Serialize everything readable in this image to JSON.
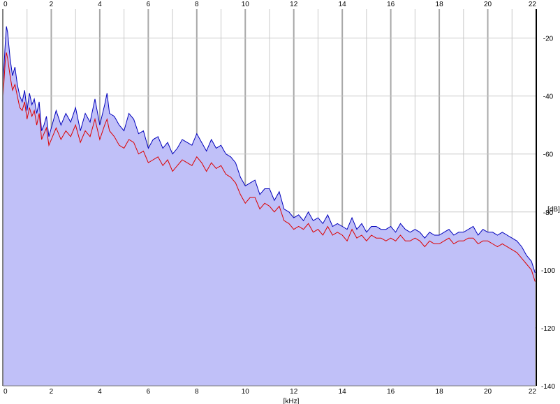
{
  "chart_data": {
    "type": "area",
    "xlabel": "[kHz]",
    "ylabel": "[dB]",
    "xlim": [
      0,
      22
    ],
    "ylim": [
      -140,
      -10
    ],
    "x_ticks": [
      "0",
      "2",
      "4",
      "6",
      "8",
      "10",
      "12",
      "14",
      "16",
      "18",
      "20",
      "22"
    ],
    "y_ticks": [
      "-20",
      "-40",
      "-60",
      "-80",
      "-100",
      "-120",
      "-140"
    ],
    "grid": true,
    "series": [
      {
        "color": "#0000bb",
        "x": [
          0,
          0.05,
          0.1,
          0.15,
          0.2,
          0.3,
          0.4,
          0.5,
          0.6,
          0.7,
          0.8,
          0.9,
          1.0,
          1.1,
          1.2,
          1.3,
          1.4,
          1.5,
          1.6,
          1.7,
          1.8,
          1.9,
          2.0,
          2.2,
          2.4,
          2.6,
          2.8,
          3.0,
          3.2,
          3.4,
          3.6,
          3.8,
          4.0,
          4.2,
          4.3,
          4.4,
          4.6,
          4.8,
          5.0,
          5.2,
          5.4,
          5.6,
          5.8,
          6.0,
          6.2,
          6.4,
          6.6,
          6.8,
          7.0,
          7.2,
          7.4,
          7.6,
          7.8,
          8.0,
          8.2,
          8.4,
          8.6,
          8.8,
          9.0,
          9.2,
          9.4,
          9.6,
          9.8,
          10.0,
          10.2,
          10.4,
          10.6,
          10.8,
          11.0,
          11.2,
          11.4,
          11.6,
          11.8,
          12.0,
          12.2,
          12.4,
          12.6,
          12.8,
          13.0,
          13.2,
          13.4,
          13.6,
          13.8,
          14.0,
          14.2,
          14.4,
          14.6,
          14.8,
          15.0,
          15.2,
          15.4,
          15.6,
          15.8,
          16.0,
          16.2,
          16.4,
          16.6,
          16.8,
          17.0,
          17.2,
          17.4,
          17.6,
          17.8,
          18.0,
          18.2,
          18.4,
          18.6,
          18.8,
          19.0,
          19.2,
          19.4,
          19.6,
          19.8,
          20.0,
          20.2,
          20.4,
          20.6,
          20.8,
          21.0,
          21.2,
          21.4,
          21.6,
          21.8,
          21.95
        ],
        "y": [
          -37,
          -30,
          -22,
          -16,
          -18,
          -27,
          -33,
          -30,
          -36,
          -40,
          -42,
          -38,
          -45,
          -39,
          -43,
          -41,
          -46,
          -42,
          -52,
          -50,
          -47,
          -54,
          -51,
          -45,
          -50,
          -46,
          -49,
          -44,
          -52,
          -46,
          -49,
          -41,
          -50,
          -43,
          -39,
          -46,
          -47,
          -50,
          -52,
          -46,
          -48,
          -53,
          -52,
          -58,
          -55,
          -54,
          -58,
          -56,
          -60,
          -58,
          -55,
          -56,
          -57,
          -53,
          -56,
          -59,
          -55,
          -58,
          -57,
          -60,
          -61,
          -63,
          -68,
          -71,
          -70,
          -69,
          -74,
          -72,
          -72,
          -76,
          -73,
          -79,
          -80,
          -82,
          -81,
          -83,
          -80,
          -83,
          -82,
          -84,
          -81,
          -85,
          -84,
          -85,
          -86,
          -82,
          -86,
          -84,
          -87,
          -85,
          -85,
          -86,
          -86,
          -85,
          -87,
          -84,
          -86,
          -87,
          -86,
          -87,
          -89,
          -87,
          -88,
          -88,
          -87,
          -86,
          -88,
          -87,
          -87,
          -86,
          -85,
          -88,
          -86,
          -87,
          -87,
          -88,
          -87,
          -88,
          -89,
          -90,
          -92,
          -95,
          -97,
          -101
        ]
      },
      {
        "color": "#dd0000",
        "x": [
          0,
          0.05,
          0.1,
          0.15,
          0.2,
          0.3,
          0.4,
          0.5,
          0.6,
          0.7,
          0.8,
          0.9,
          1.0,
          1.1,
          1.2,
          1.3,
          1.4,
          1.5,
          1.6,
          1.7,
          1.8,
          1.9,
          2.0,
          2.2,
          2.4,
          2.6,
          2.8,
          3.0,
          3.2,
          3.4,
          3.6,
          3.8,
          4.0,
          4.2,
          4.3,
          4.4,
          4.6,
          4.8,
          5.0,
          5.2,
          5.4,
          5.6,
          5.8,
          6.0,
          6.2,
          6.4,
          6.6,
          6.8,
          7.0,
          7.2,
          7.4,
          7.6,
          7.8,
          8.0,
          8.2,
          8.4,
          8.6,
          8.8,
          9.0,
          9.2,
          9.4,
          9.6,
          9.8,
          10.0,
          10.2,
          10.4,
          10.6,
          10.8,
          11.0,
          11.2,
          11.4,
          11.6,
          11.8,
          12.0,
          12.2,
          12.4,
          12.6,
          12.8,
          13.0,
          13.2,
          13.4,
          13.6,
          13.8,
          14.0,
          14.2,
          14.4,
          14.6,
          14.8,
          15.0,
          15.2,
          15.4,
          15.6,
          15.8,
          16.0,
          16.2,
          16.4,
          16.6,
          16.8,
          17.0,
          17.2,
          17.4,
          17.6,
          17.8,
          18.0,
          18.2,
          18.4,
          18.6,
          18.8,
          19.0,
          19.2,
          19.4,
          19.6,
          19.8,
          20.0,
          20.2,
          20.4,
          20.6,
          20.8,
          21.0,
          21.2,
          21.4,
          21.6,
          21.8,
          21.95
        ],
        "y": [
          -42,
          -35,
          -28,
          -25,
          -27,
          -33,
          -38,
          -36,
          -40,
          -44,
          -45,
          -42,
          -48,
          -44,
          -47,
          -45,
          -50,
          -46,
          -55,
          -53,
          -51,
          -57,
          -55,
          -51,
          -55,
          -52,
          -54,
          -50,
          -56,
          -52,
          -54,
          -48,
          -55,
          -50,
          -48,
          -52,
          -54,
          -57,
          -58,
          -55,
          -56,
          -60,
          -59,
          -63,
          -62,
          -61,
          -64,
          -62,
          -66,
          -64,
          -62,
          -63,
          -64,
          -61,
          -63,
          -66,
          -63,
          -65,
          -64,
          -67,
          -68,
          -70,
          -74,
          -77,
          -75,
          -75,
          -79,
          -77,
          -78,
          -80,
          -78,
          -83,
          -84,
          -86,
          -85,
          -86,
          -84,
          -87,
          -86,
          -88,
          -85,
          -88,
          -87,
          -88,
          -90,
          -86,
          -89,
          -88,
          -90,
          -88,
          -89,
          -89,
          -90,
          -89,
          -90,
          -88,
          -90,
          -90,
          -89,
          -90,
          -92,
          -90,
          -91,
          -91,
          -90,
          -89,
          -91,
          -90,
          -90,
          -89,
          -89,
          -91,
          -90,
          -90,
          -91,
          -92,
          -91,
          -92,
          -93,
          -94,
          -96,
          -98,
          -100,
          -104
        ]
      }
    ]
  }
}
